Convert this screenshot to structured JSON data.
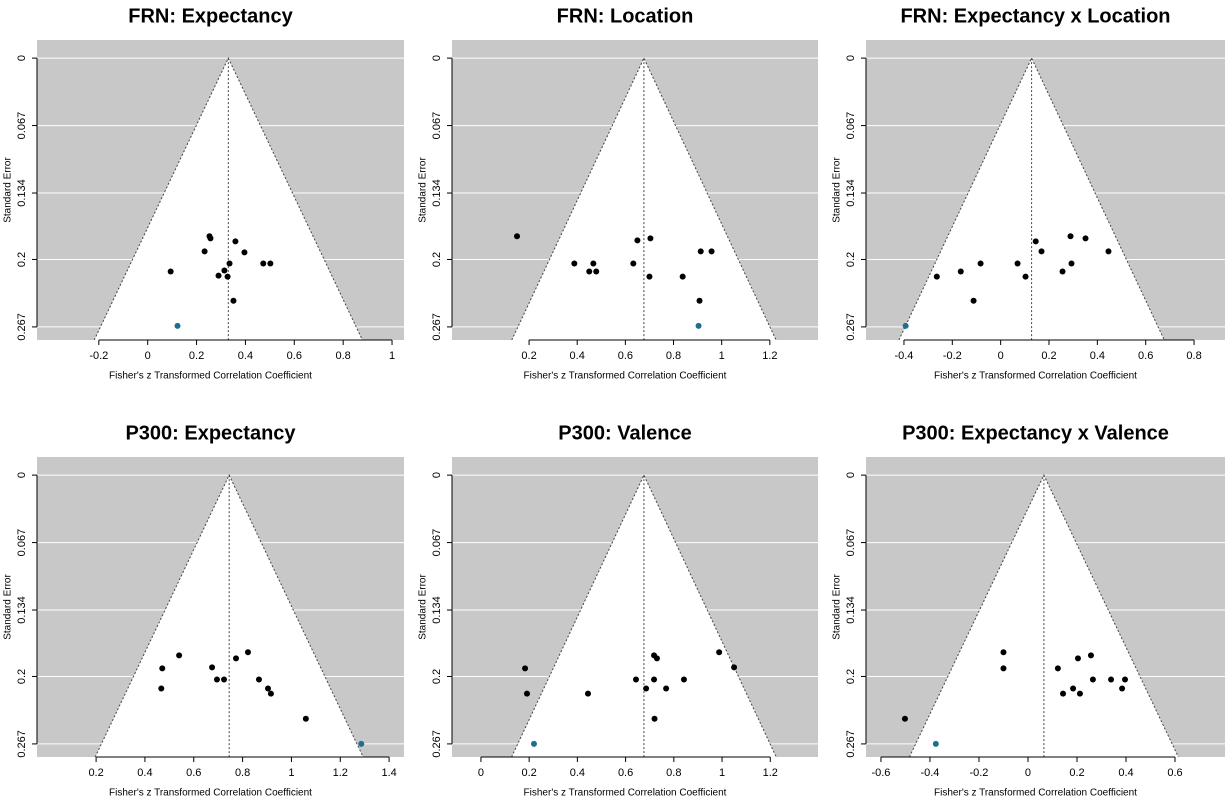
{
  "chart_data": [
    {
      "type": "funnel",
      "title": "FRN: Expectancy",
      "xlabel": "Fisher's z Transformed Correlation Coefficient",
      "ylabel": "Standard Error",
      "estimate": 0.33,
      "xlim": [
        -0.453,
        1.049
      ],
      "ylim": [
        0.28,
        -0.018
      ],
      "xticks": [
        -0.2,
        0,
        0.2,
        0.4,
        0.6,
        0.8,
        1
      ],
      "yticks": [
        0,
        0.067,
        0.134,
        0.2,
        0.267
      ],
      "grid": true,
      "background": "#c8c8c8",
      "series": [
        {
          "color": "#000000",
          "x": [
            0.253,
            0.257,
            0.233,
            0.359,
            0.396,
            0.335,
            0.473,
            0.502,
            0.314,
            0.29,
            0.327,
            0.351,
            0.094
          ],
          "values": [
            0.177,
            0.179,
            0.192,
            0.182,
            0.193,
            0.204,
            0.204,
            0.204,
            0.211,
            0.216,
            0.217,
            0.241,
            0.212
          ]
        },
        {
          "color": "#1b6f8f",
          "x": [
            0.122
          ],
          "values": [
            0.266
          ]
        }
      ]
    },
    {
      "type": "funnel",
      "title": "FRN: Location",
      "xlabel": "Fisher's z Transformed Correlation Coefficient",
      "ylabel": "Standard Error",
      "estimate": 0.677,
      "xlim": [
        -0.12,
        1.4
      ],
      "ylim": [
        0.28,
        -0.018
      ],
      "xticks": [
        0.2,
        0.4,
        0.6,
        0.8,
        1,
        1.2
      ],
      "yticks": [
        0,
        0.067,
        0.134,
        0.2,
        0.267
      ],
      "grid": true,
      "background": "#c8c8c8",
      "series": [
        {
          "color": "#000000",
          "x": [
            0.15,
            0.65,
            0.704,
            0.388,
            0.467,
            0.45,
            0.479,
            0.633,
            0.7,
            0.838,
            0.913,
            0.958,
            0.908
          ],
          "values": [
            0.177,
            0.181,
            0.179,
            0.204,
            0.204,
            0.212,
            0.212,
            0.204,
            0.217,
            0.217,
            0.192,
            0.192,
            0.241
          ]
        },
        {
          "color": "#1b6f8f",
          "x": [
            0.904
          ],
          "values": [
            0.266
          ]
        }
      ]
    },
    {
      "type": "funnel",
      "title": "FRN: Expectancy x Location",
      "xlabel": "Fisher's z Transformed Correlation Coefficient",
      "ylabel": "Standard Error",
      "estimate": 0.128,
      "xlim": [
        -0.557,
        0.928
      ],
      "ylim": [
        0.28,
        -0.018
      ],
      "xticks": [
        -0.4,
        -0.2,
        0,
        0.2,
        0.4,
        0.6,
        0.8
      ],
      "yticks": [
        0,
        0.067,
        0.134,
        0.2,
        0.267
      ],
      "grid": true,
      "background": "#c8c8c8",
      "series": [
        {
          "color": "#000000",
          "x": [
            -0.264,
            -0.165,
            -0.083,
            -0.112,
            0.07,
            0.103,
            0.145,
            0.169,
            0.256,
            0.293,
            0.289,
            0.351,
            0.446
          ],
          "values": [
            0.217,
            0.212,
            0.204,
            0.241,
            0.204,
            0.217,
            0.182,
            0.192,
            0.212,
            0.204,
            0.177,
            0.179,
            0.192
          ]
        },
        {
          "color": "#1b6f8f",
          "x": [
            -0.393
          ],
          "values": [
            0.266
          ]
        }
      ]
    },
    {
      "type": "funnel",
      "title": "P300: Expectancy",
      "xlabel": "Fisher's z Transformed Correlation Coefficient",
      "ylabel": "Standard Error",
      "estimate": 0.745,
      "xlim": [
        -0.042,
        1.461
      ],
      "ylim": [
        0.28,
        -0.018
      ],
      "xticks": [
        0.2,
        0.4,
        0.6,
        0.8,
        1,
        1.2,
        1.4
      ],
      "yticks": [
        0,
        0.067,
        0.134,
        0.2,
        0.267
      ],
      "grid": true,
      "background": "#c8c8c8",
      "series": [
        {
          "color": "#000000",
          "x": [
            0.471,
            0.467,
            0.54,
            0.675,
            0.695,
            0.724,
            0.773,
            0.822,
            0.867,
            0.904,
            0.916,
            1.059
          ],
          "values": [
            0.192,
            0.212,
            0.179,
            0.191,
            0.203,
            0.203,
            0.182,
            0.176,
            0.203,
            0.212,
            0.217,
            0.242
          ]
        },
        {
          "color": "#1b6f8f",
          "x": [
            1.286
          ],
          "values": [
            0.267
          ]
        }
      ]
    },
    {
      "type": "funnel",
      "title": "P300: Valence",
      "xlabel": "Fisher's z Transformed Correlation Coefficient",
      "ylabel": "Standard Error",
      "estimate": 0.676,
      "xlim": [
        -0.12,
        1.398
      ],
      "ylim": [
        0.28,
        -0.018
      ],
      "xticks": [
        0,
        0.2,
        0.4,
        0.6,
        0.8,
        1,
        1.2
      ],
      "yticks": [
        0,
        0.067,
        0.134,
        0.2,
        0.267
      ],
      "grid": true,
      "background": "#c8c8c8",
      "series": [
        {
          "color": "#000000",
          "x": [
            0.183,
            0.191,
            0.444,
            0.643,
            0.685,
            0.718,
            0.718,
            0.73,
            0.768,
            0.842,
            0.988,
            1.05,
            0.72
          ],
          "values": [
            0.192,
            0.217,
            0.217,
            0.203,
            0.212,
            0.203,
            0.179,
            0.182,
            0.212,
            0.203,
            0.176,
            0.191,
            0.242
          ]
        },
        {
          "color": "#1b6f8f",
          "x": [
            0.22
          ],
          "values": [
            0.267
          ]
        }
      ]
    },
    {
      "type": "funnel",
      "title": "P300: Expectancy x Valence",
      "xlabel": "Fisher's z Transformed Correlation Coefficient",
      "ylabel": "Standard Error",
      "estimate": 0.065,
      "xlim": [
        -0.661,
        0.804
      ],
      "ylim": [
        0.28,
        -0.018
      ],
      "xticks": [
        -0.6,
        -0.4,
        -0.2,
        0,
        0.2,
        0.4,
        0.6
      ],
      "yticks": [
        0,
        0.067,
        0.134,
        0.2,
        0.267
      ],
      "grid": true,
      "background": "#c8c8c8",
      "series": [
        {
          "color": "#000000",
          "x": [
            -0.502,
            -0.1,
            -0.1,
            0.122,
            0.143,
            0.184,
            0.204,
            0.212,
            0.257,
            0.265,
            0.339,
            0.384,
            0.396
          ],
          "values": [
            0.242,
            0.176,
            0.192,
            0.192,
            0.217,
            0.212,
            0.182,
            0.217,
            0.179,
            0.203,
            0.203,
            0.212,
            0.203
          ]
        },
        {
          "color": "#1b6f8f",
          "x": [
            -0.376
          ],
          "values": [
            0.267
          ]
        }
      ]
    }
  ]
}
